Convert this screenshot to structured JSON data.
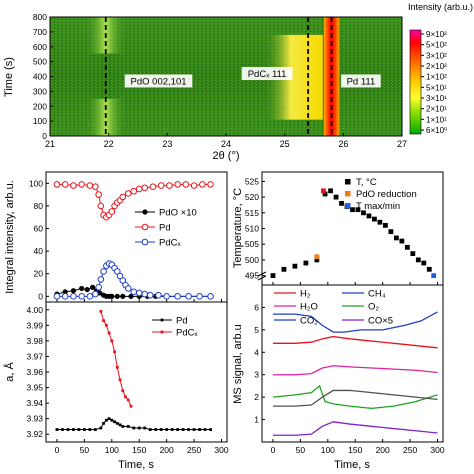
{
  "chart_data": [
    {
      "type": "heatmap",
      "ylabel": "Time (s)",
      "xlabel": "2θ (°)",
      "x_ticks": [
        "21",
        "22",
        "23",
        "24",
        "25",
        "26",
        "27"
      ],
      "y_ticks": [
        "0",
        "100",
        "200",
        "300",
        "400",
        "500",
        "600",
        "700",
        "800"
      ],
      "xlim": [
        21,
        27
      ],
      "ylim": [
        0,
        800
      ],
      "colorbar": {
        "title": "Intensity (arb.u.)",
        "ticks": [
          "9×10²",
          "5×10²",
          "3×10²",
          "2×10²",
          "1×10²",
          "5×10¹",
          "3×10¹",
          "2×10¹",
          "1×10¹",
          "6×10⁰"
        ],
        "colors": [
          "#ff00aa",
          "#ff0000",
          "#ff3300",
          "#ff6600",
          "#ff9900",
          "#ffcc00",
          "#ffee00",
          "#ccee00",
          "#66cc00",
          "#00aa00"
        ]
      },
      "annotations": [
        {
          "text": "PdO 002,101",
          "x": 22.85,
          "y": 360
        },
        {
          "text": "PdCₓ 111",
          "x": 24.7,
          "y": 410
        },
        {
          "text": "Pd 111",
          "x": 26.3,
          "y": 360
        }
      ],
      "dashed_lines_x": [
        21.95,
        25.4,
        25.8
      ],
      "features": [
        {
          "name": "PdO band",
          "x_center": 21.95,
          "bands_y": [
            [
              0,
              250
            ],
            [
              555,
              800
            ]
          ]
        },
        {
          "name": "PdCx band",
          "x_center": 25.05,
          "y_range": [
            110,
            680
          ]
        },
        {
          "name": "Pd line",
          "x_center": 25.8,
          "y_range": [
            0,
            800
          ]
        }
      ]
    },
    {
      "type": "line",
      "ylabel": "Integral intensity, arb.u.",
      "ylim": [
        -5,
        110
      ],
      "y_ticks": [
        0,
        20,
        40,
        60,
        80,
        100
      ],
      "xlim": [
        -20,
        310
      ],
      "series": [
        {
          "name": "PdO ×10",
          "color": "#000000",
          "marker": "filled-circle",
          "x": [
            0,
            15,
            30,
            45,
            55,
            65,
            72,
            78,
            85,
            90,
            95,
            100,
            110,
            120,
            135,
            150,
            165,
            180,
            200,
            220,
            240,
            260,
            280
          ],
          "y": [
            2,
            4,
            5,
            7,
            6,
            8,
            5,
            3,
            1,
            0,
            0,
            0,
            0,
            0,
            0,
            0,
            0,
            0,
            0,
            0,
            0,
            0,
            0
          ]
        },
        {
          "name": "Pd",
          "color": "#e8141c",
          "marker": "open-circle",
          "x": [
            0,
            15,
            30,
            45,
            60,
            70,
            76,
            80,
            85,
            90,
            95,
            100,
            105,
            110,
            115,
            120,
            130,
            140,
            150,
            160,
            175,
            190,
            205,
            220,
            235,
            250,
            265,
            280
          ],
          "y": [
            99,
            99,
            98,
            99,
            98,
            97,
            90,
            80,
            72,
            70,
            72,
            75,
            80,
            83,
            85,
            88,
            91,
            93,
            95,
            96,
            97,
            98,
            98,
            99,
            99,
            98,
            99,
            99
          ]
        },
        {
          "name": "PdCₓ",
          "color": "#1f3fc8",
          "marker": "open-circle",
          "x": [
            0,
            15,
            30,
            45,
            60,
            70,
            76,
            80,
            85,
            90,
            95,
            100,
            105,
            110,
            115,
            120,
            125,
            130,
            140,
            150,
            160,
            170,
            185,
            200,
            220,
            240,
            260,
            280
          ],
          "y": [
            0,
            0,
            0,
            0,
            0,
            2,
            8,
            15,
            22,
            27,
            29,
            28,
            25,
            22,
            18,
            14,
            10,
            7,
            4,
            3,
            2,
            1,
            1,
            0,
            0,
            0,
            0,
            0
          ]
        }
      ]
    },
    {
      "type": "line",
      "ylabel": "a, Å",
      "xlabel": "Time, s",
      "ylim": [
        3.915,
        4.005
      ],
      "y_ticks": [
        3.92,
        3.93,
        3.94,
        3.95,
        3.96,
        3.97,
        3.98,
        3.99,
        4.0
      ],
      "xlim": [
        -20,
        310
      ],
      "x_ticks": [
        0,
        50,
        100,
        150,
        200,
        250,
        300
      ],
      "series": [
        {
          "name": "Pd",
          "color": "#000000",
          "marker": "small-square",
          "x": [
            0,
            10,
            20,
            30,
            40,
            50,
            60,
            70,
            80,
            85,
            90,
            95,
            100,
            105,
            110,
            115,
            120,
            130,
            140,
            150,
            160,
            170,
            180,
            190,
            200,
            210,
            220,
            230,
            240,
            250,
            260,
            270,
            280
          ],
          "y": [
            3.923,
            3.923,
            3.923,
            3.923,
            3.923,
            3.923,
            3.923,
            3.923,
            3.924,
            3.927,
            3.929,
            3.93,
            3.929,
            3.928,
            3.927,
            3.926,
            3.925,
            3.925,
            3.924,
            3.924,
            3.924,
            3.923,
            3.923,
            3.923,
            3.923,
            3.923,
            3.923,
            3.923,
            3.923,
            3.923,
            3.923,
            3.923,
            3.923
          ]
        },
        {
          "name": "PdCₓ",
          "color": "#e8141c",
          "marker": "small-square",
          "x": [
            80,
            85,
            90,
            95,
            100,
            105,
            110,
            115,
            120,
            125,
            130,
            135
          ],
          "y": [
            3.999,
            3.993,
            3.99,
            3.985,
            3.98,
            3.973,
            3.963,
            3.955,
            3.948,
            3.944,
            3.942,
            3.938
          ]
        }
      ]
    },
    {
      "type": "scatter",
      "ylabel": "Temperature, °C",
      "ylim": [
        492,
        528
      ],
      "y_ticks": [
        495,
        500,
        505,
        510,
        515,
        520,
        525
      ],
      "xlim": [
        -20,
        310
      ],
      "legend": [
        {
          "name": "T, °C",
          "color": "#000000"
        },
        {
          "name": "PdO reduction",
          "color": "#f07c1c"
        },
        {
          "name": "T max/min",
          "color": "#2060e0"
        }
      ],
      "series": [
        {
          "name": "T, °C",
          "color": "#000000",
          "x": [
            0,
            20,
            40,
            60,
            80,
            95,
            105,
            115,
            125,
            135,
            145,
            155,
            165,
            175,
            185,
            195,
            205,
            215,
            225,
            235,
            245,
            255,
            265,
            275,
            285
          ],
          "y": [
            495,
            497,
            498,
            499,
            500,
            521,
            522,
            520,
            518,
            517,
            516,
            516,
            515,
            514,
            513,
            512,
            511,
            509,
            507,
            506,
            504,
            502,
            500,
            499,
            497
          ]
        },
        {
          "name": "PdO reduction",
          "color": "#f07c1c",
          "x": [
            80
          ],
          "y": [
            501
          ]
        },
        {
          "name": "T max/min",
          "color": "#e8141c",
          "x": [
            92
          ],
          "y": [
            522
          ]
        },
        {
          "name": "T max/min min",
          "color": "#2060e0",
          "x": [
            293
          ],
          "y": [
            495
          ]
        }
      ]
    },
    {
      "type": "line",
      "ylabel": "MS signal, arb.u",
      "xlabel": "Time, s",
      "ylim": [
        0,
        7
      ],
      "y_ticks": [
        1,
        2,
        3,
        4,
        5,
        6
      ],
      "xlim": [
        -20,
        310
      ],
      "x_ticks": [
        0,
        50,
        100,
        150,
        200,
        250,
        300
      ],
      "legend": [
        {
          "name": "H₂",
          "color": "#e8141c"
        },
        {
          "name": "CH₄",
          "color": "#1f3fc8"
        },
        {
          "name": "H₂O",
          "color": "#e020a0"
        },
        {
          "name": "O₂",
          "color": "#20a020"
        },
        {
          "name": "CO₂",
          "color": "#1f3fc8"
        },
        {
          "name": "CO×5",
          "color": "#8020d0"
        }
      ],
      "series": [
        {
          "name": "CO₂",
          "color": "#1f3fc8",
          "x": [
            0,
            40,
            70,
            90,
            110,
            130,
            160,
            200,
            240,
            270,
            300
          ],
          "y": [
            5.7,
            5.7,
            5.6,
            5.2,
            4.9,
            4.9,
            5.0,
            5.0,
            5.2,
            5.4,
            5.8
          ]
        },
        {
          "name": "H₂",
          "color": "#e8141c",
          "x": [
            0,
            40,
            70,
            90,
            110,
            140,
            180,
            220,
            260,
            300
          ],
          "y": [
            4.4,
            4.4,
            4.45,
            4.6,
            4.7,
            4.6,
            4.5,
            4.4,
            4.3,
            4.2
          ]
        },
        {
          "name": "H₂O",
          "color": "#e020a0",
          "x": [
            0,
            40,
            70,
            90,
            110,
            140,
            180,
            220,
            260,
            300
          ],
          "y": [
            3.0,
            3.0,
            3.05,
            3.3,
            3.4,
            3.35,
            3.3,
            3.25,
            3.2,
            3.1
          ]
        },
        {
          "name": "O₂",
          "color": "#20a020",
          "x": [
            0,
            40,
            70,
            85,
            95,
            110,
            140,
            180,
            220,
            260,
            300
          ],
          "y": [
            2.0,
            2.1,
            2.2,
            2.5,
            1.8,
            1.7,
            1.6,
            1.5,
            1.6,
            1.8,
            2.1
          ]
        },
        {
          "name": "CH₄",
          "color": "#505050",
          "x": [
            0,
            40,
            70,
            90,
            110,
            140,
            180,
            220,
            260,
            300
          ],
          "y": [
            1.6,
            1.6,
            1.65,
            2.0,
            2.3,
            2.3,
            2.2,
            2.1,
            2.0,
            1.9
          ]
        },
        {
          "name": "CO×5",
          "color": "#8020d0",
          "x": [
            0,
            40,
            70,
            90,
            110,
            140,
            180,
            220,
            260,
            300
          ],
          "y": [
            0.3,
            0.3,
            0.35,
            0.7,
            0.9,
            0.8,
            0.7,
            0.6,
            0.5,
            0.4
          ]
        }
      ]
    }
  ]
}
